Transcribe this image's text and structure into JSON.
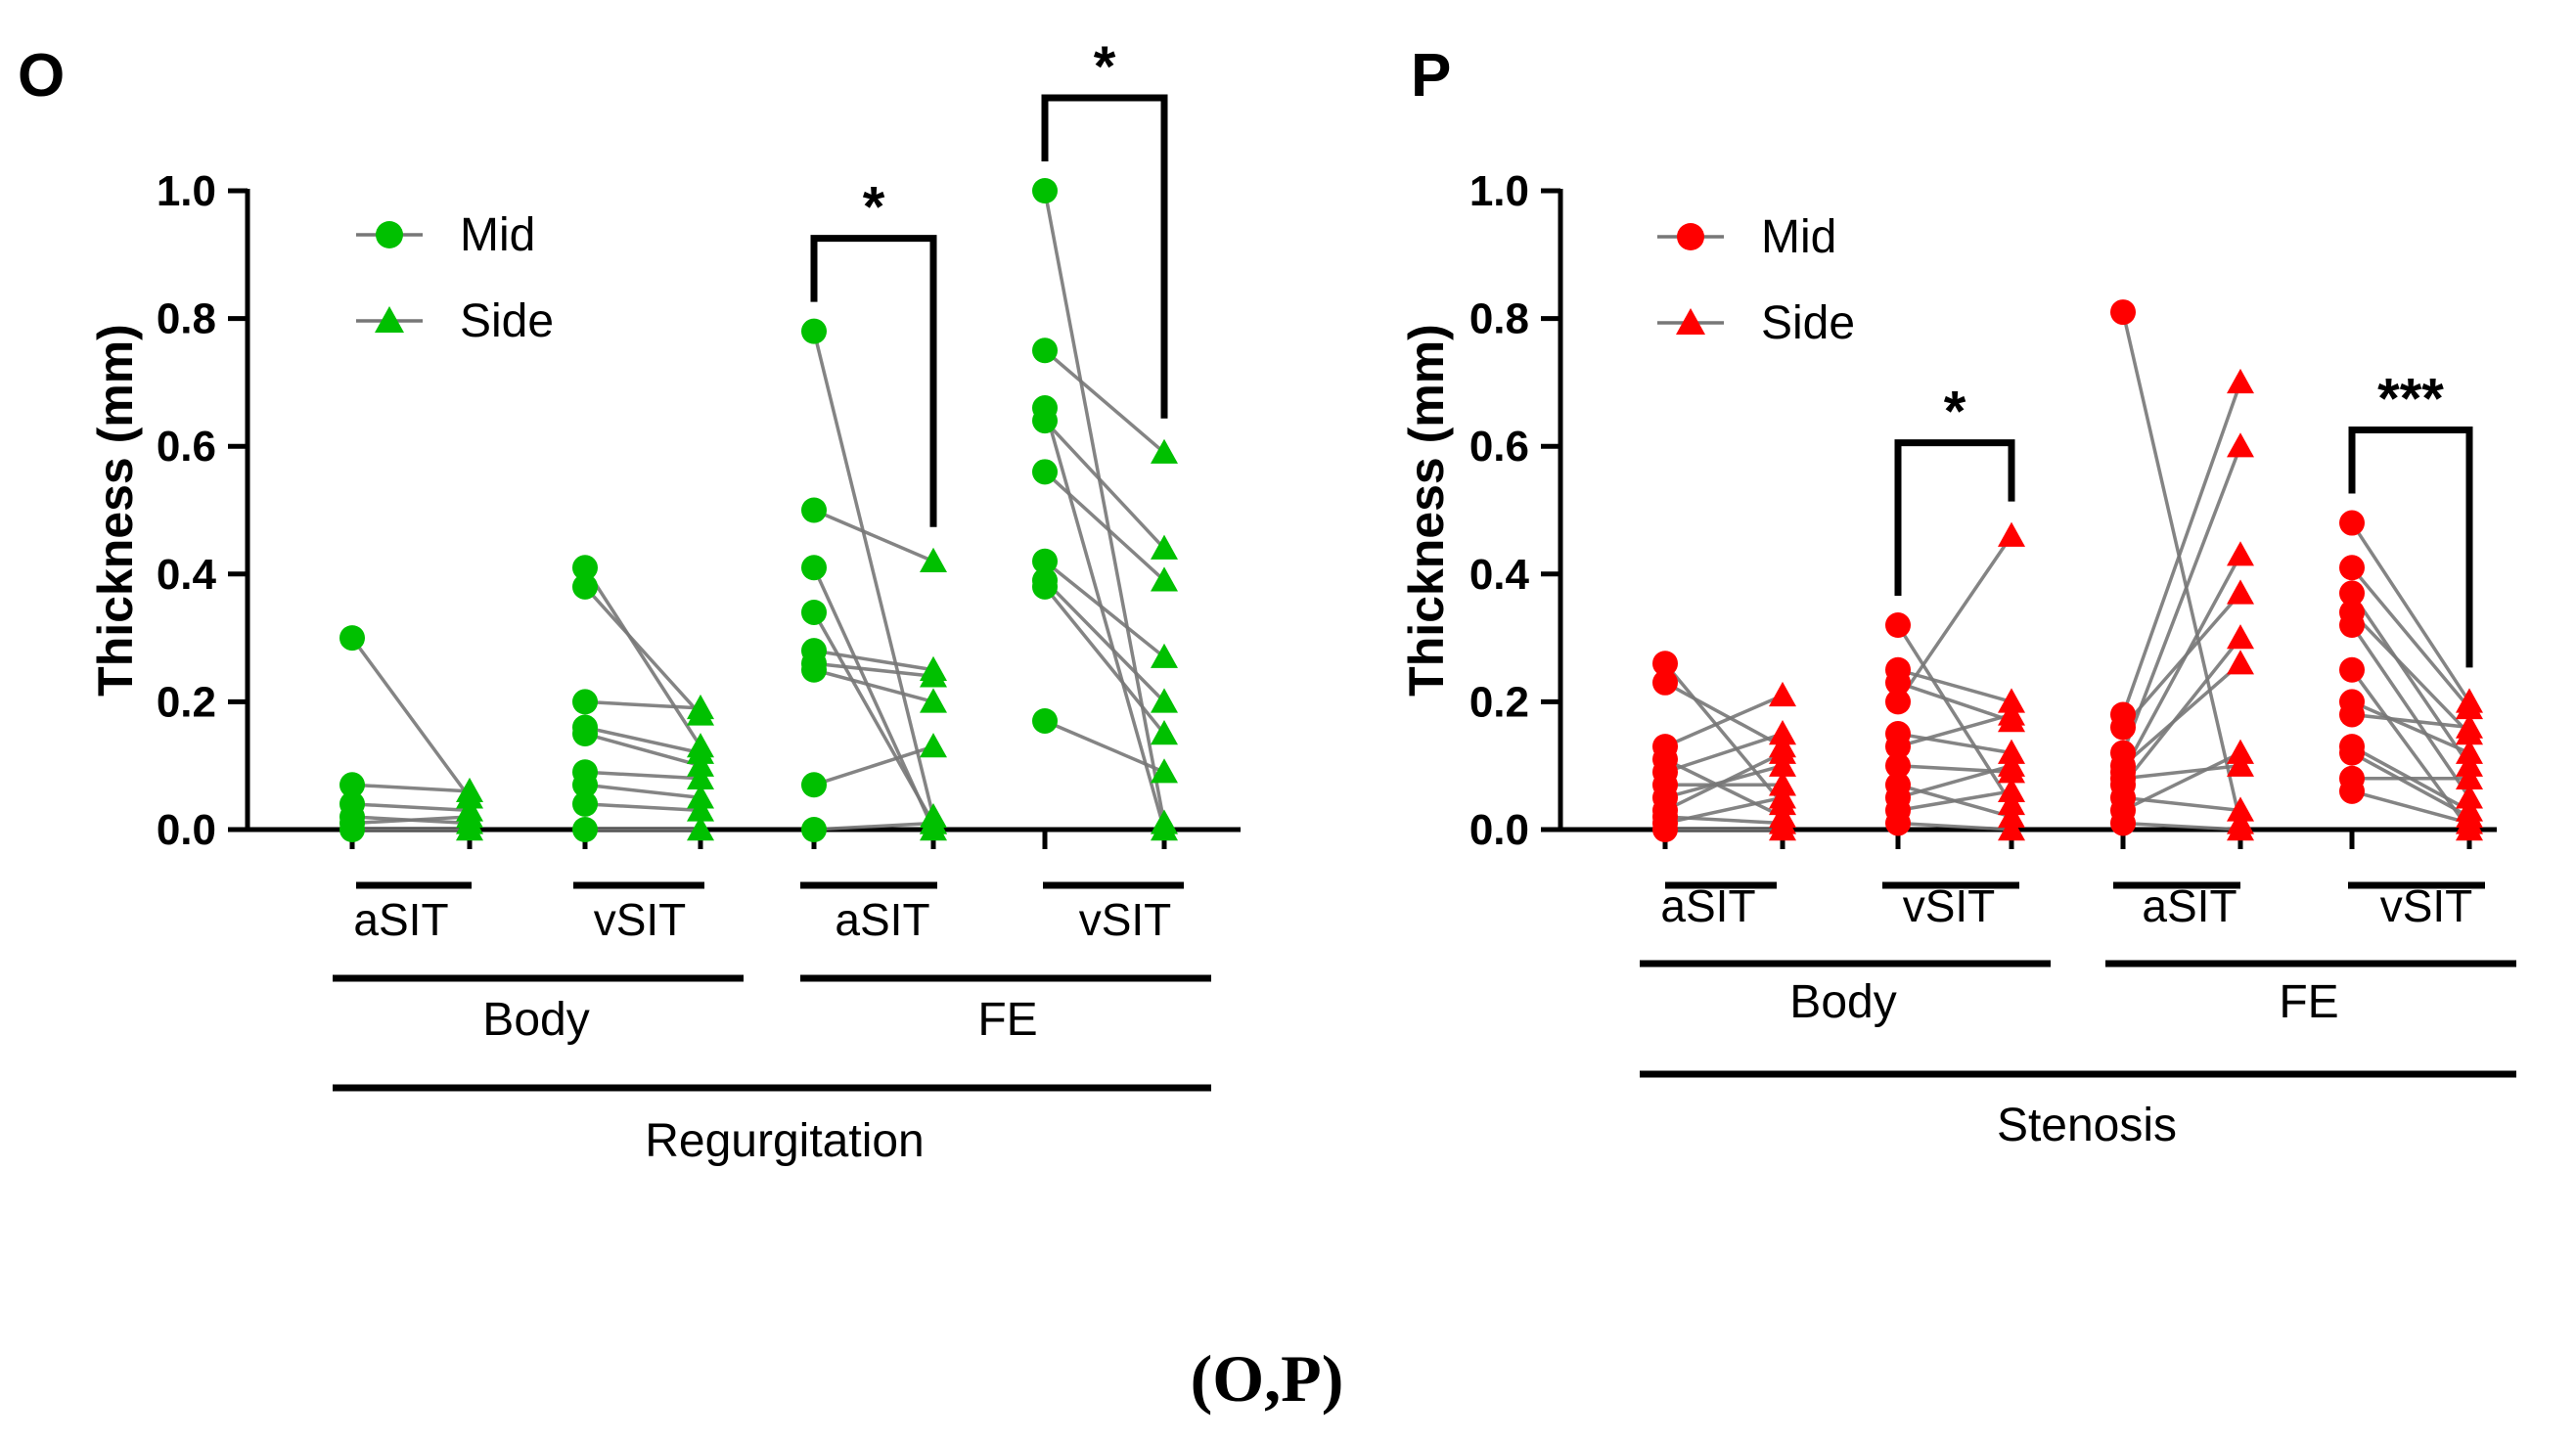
{
  "caption": "(O,P)",
  "chart_data": [
    {
      "type": "scatter",
      "panel_label": "O",
      "ylabel": "Thickness (mm)",
      "ylim": [
        0,
        1.0
      ],
      "yticks": [
        "0.0",
        "0.2",
        "0.4",
        "0.6",
        "0.8",
        "1.0"
      ],
      "accent_color": "#00c000",
      "legend": [
        "Mid",
        "Side"
      ],
      "legend_position": "top-left",
      "group_labels": [
        "aSIT",
        "vSIT",
        "aSIT",
        "vSIT"
      ],
      "region_labels": [
        "Body",
        "FE"
      ],
      "condition_label": "Regurgitation",
      "significance": [
        {
          "group": 2,
          "label": "*"
        },
        {
          "group": 3,
          "label": "*"
        }
      ],
      "groups": [
        {
          "mid": [
            0.3,
            0.07,
            0.04,
            0.02,
            0.0,
            0.01
          ],
          "side": [
            0.05,
            0.06,
            0.03,
            0.01,
            0.0,
            0.02
          ]
        },
        {
          "mid": [
            0.41,
            0.38,
            0.2,
            0.16,
            0.15,
            0.09,
            0.07,
            0.04,
            0.0
          ],
          "side": [
            0.13,
            0.18,
            0.19,
            0.12,
            0.1,
            0.08,
            0.05,
            0.03,
            0.0
          ]
        },
        {
          "mid": [
            0.78,
            0.5,
            0.41,
            0.34,
            0.28,
            0.26,
            0.25,
            0.07,
            0.0
          ],
          "side": [
            0.02,
            0.42,
            0.0,
            0.01,
            0.25,
            0.24,
            0.2,
            0.13,
            0.01
          ]
        },
        {
          "mid": [
            1.0,
            0.75,
            0.66,
            0.64,
            0.56,
            0.42,
            0.39,
            0.38,
            0.17
          ],
          "side": [
            0.01,
            0.59,
            0.0,
            0.44,
            0.39,
            0.27,
            0.2,
            0.15,
            0.09
          ]
        }
      ]
    },
    {
      "type": "scatter",
      "panel_label": "P",
      "ylabel": "Thickness (mm)",
      "ylim": [
        0,
        1.0
      ],
      "yticks": [
        "0.0",
        "0.2",
        "0.4",
        "0.6",
        "0.8",
        "1.0"
      ],
      "accent_color": "#ff0000",
      "legend": [
        "Mid",
        "Side"
      ],
      "legend_position": "top-left",
      "group_labels": [
        "aSIT",
        "vSIT",
        "aSIT",
        "vSIT"
      ],
      "region_labels": [
        "Body",
        "FE"
      ],
      "condition_label": "Stenosis",
      "significance": [
        {
          "group": 1,
          "label": "*"
        },
        {
          "group": 3,
          "label": "***"
        }
      ],
      "groups": [
        {
          "mid": [
            0.26,
            0.23,
            0.13,
            0.11,
            0.09,
            0.07,
            0.05,
            0.03,
            0.02,
            0.01,
            0.0
          ],
          "side": [
            0.04,
            0.13,
            0.21,
            0.02,
            0.15,
            0.07,
            0.1,
            0.12,
            0.01,
            0.05,
            0.0
          ]
        },
        {
          "mid": [
            0.32,
            0.25,
            0.23,
            0.2,
            0.15,
            0.13,
            0.1,
            0.07,
            0.05,
            0.03,
            0.01
          ],
          "side": [
            0.04,
            0.2,
            0.17,
            0.46,
            0.12,
            0.18,
            0.09,
            0.02,
            0.1,
            0.06,
            0.0
          ]
        },
        {
          "mid": [
            0.81,
            0.18,
            0.16,
            0.12,
            0.1,
            0.09,
            0.08,
            0.07,
            0.05,
            0.03,
            0.01
          ],
          "side": [
            0.01,
            0.7,
            0.37,
            0.6,
            0.26,
            0.43,
            0.1,
            0.3,
            0.03,
            0.12,
            0.0
          ]
        },
        {
          "mid": [
            0.48,
            0.41,
            0.37,
            0.34,
            0.32,
            0.25,
            0.2,
            0.18,
            0.13,
            0.12,
            0.08,
            0.06
          ],
          "side": [
            0.2,
            0.19,
            0.1,
            0.15,
            0.05,
            0.0,
            0.12,
            0.16,
            0.03,
            0.02,
            0.08,
            0.01
          ]
        }
      ]
    }
  ]
}
